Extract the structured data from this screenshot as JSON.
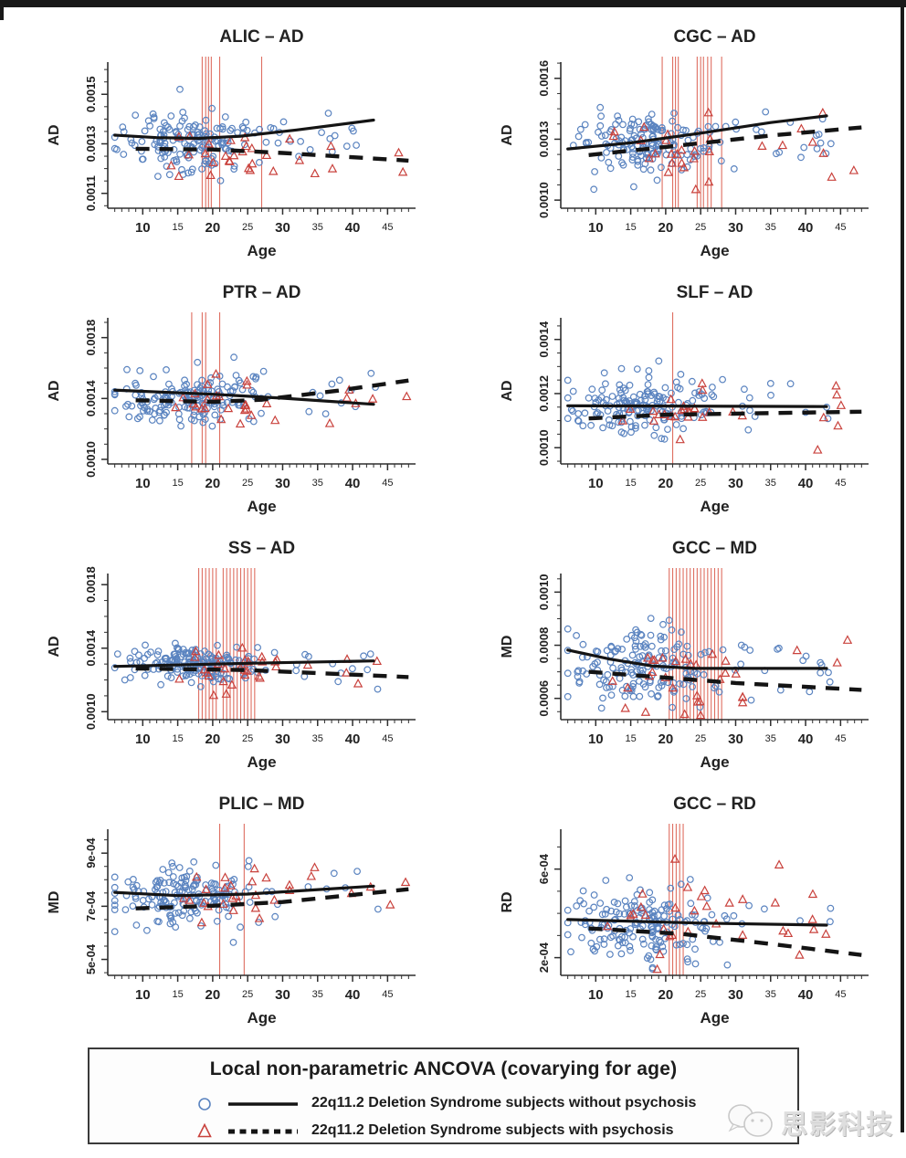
{
  "frame": {
    "top_bar_color": "#191919",
    "right_bar_color": "#191919"
  },
  "colors": {
    "blue_marker": "#5b84c0",
    "red_marker": "#c9423d",
    "red_vline": "#de6e61",
    "trend_line": "#141414",
    "axis": "#2e2e2e",
    "text": "#222222"
  },
  "legend": {
    "title": "Local non-parametric ANCOVA (covarying for age)",
    "items": [
      {
        "symbol": "circle",
        "line": "solid",
        "label": "22q11.2 Deletion Syndrome subjects without psychosis"
      },
      {
        "symbol": "triangle",
        "line": "dashed",
        "label": "22q11.2 Deletion Syndrome subjects with psychosis"
      }
    ]
  },
  "watermark": {
    "text": "思影科技"
  },
  "chart_data": {
    "type": "scatter",
    "layout": "4x2 grid of scatter plots, R base-graphics style, L-shaped axes",
    "x": {
      "label": "Age",
      "lim": [
        5,
        49
      ],
      "ticks_big": [
        10,
        20,
        30,
        40
      ],
      "ticks_small": [
        15,
        25,
        35,
        45
      ],
      "minor_from": 6,
      "minor_to": 48,
      "minor_step": 1
    },
    "series_legend": [
      {
        "name": "22q11.2 Deletion Syndrome subjects without psychosis",
        "marker": "open blue circle",
        "trend": "solid black line"
      },
      {
        "name": "22q11.2 Deletion Syndrome subjects with psychosis",
        "marker": "open red triangle",
        "trend": "dashed black line"
      }
    ],
    "sampling": {
      "blue": {
        "age_mean": 17,
        "age_sd": 4.8,
        "age_min": 6,
        "age_max": 32,
        "tail_frac": 0.08,
        "tail_min": 25,
        "tail_max": 44
      },
      "red": {
        "age_mean": 22,
        "age_sd": 4.5,
        "age_min": 9,
        "age_max": 31,
        "tail_frac": 0.2,
        "tail_min": 32,
        "tail_max": 48
      }
    },
    "panels": [
      {
        "key": "alic-ad",
        "title": "ALIC – AD",
        "ylabel": "AD",
        "xlabel": "Age",
        "ylim": [
          0.00104,
          0.00163
        ],
        "y_minor_step": 5e-05,
        "yticks": [
          {
            "v": 0.0011,
            "label": "0.0011"
          },
          {
            "v": 0.0013,
            "label": "0.0013"
          },
          {
            "v": 0.0015,
            "label": "0.0015"
          }
        ],
        "vlines": [
          18.5,
          19,
          19.4,
          19.8,
          21,
          27
        ],
        "solid": [
          [
            6,
            0.001335
          ],
          [
            12,
            0.001325
          ],
          [
            18,
            0.001322
          ],
          [
            24,
            0.001331
          ],
          [
            32,
            0.001356
          ],
          [
            43,
            0.001396
          ]
        ],
        "dashed": [
          [
            9,
            0.00128
          ],
          [
            20,
            0.001277
          ],
          [
            30,
            0.001263
          ],
          [
            48,
            0.001232
          ]
        ],
        "blue": {
          "n": 175,
          "y_center": 0.00131,
          "y_sd": 6.5e-05
        },
        "red": {
          "n": 30,
          "y_center": 0.001265,
          "y_sd": 6.2e-05
        },
        "seed": 101
      },
      {
        "key": "cgc-ad",
        "title": "CGC – AD",
        "ylabel": "AD",
        "xlabel": "Age",
        "ylim": [
          0.00096,
          0.00168
        ],
        "y_minor_step": 7.5e-05,
        "yticks": [
          {
            "v": 0.001,
            "label": "0.0010"
          },
          {
            "v": 0.0013,
            "label": "0.0013"
          },
          {
            "v": 0.0016,
            "label": "0.0016"
          }
        ],
        "vlines": [
          19.5,
          21,
          21.4,
          21.8,
          24.5,
          25,
          25.4,
          26,
          26.5,
          28
        ],
        "solid": [
          [
            6,
            0.001252
          ],
          [
            15,
            0.001282
          ],
          [
            25,
            0.00133
          ],
          [
            35,
            0.001382
          ],
          [
            43,
            0.001415
          ]
        ],
        "dashed": [
          [
            9,
            0.001222
          ],
          [
            20,
            0.001262
          ],
          [
            35,
            0.001318
          ],
          [
            48,
            0.001358
          ]
        ],
        "blue": {
          "n": 175,
          "y_center": 0.00129,
          "y_sd": 8.2e-05
        },
        "red": {
          "n": 30,
          "y_center": 0.001275,
          "y_sd": 7.5e-05
        },
        "seed": 202
      },
      {
        "key": "ptr-ad",
        "title": "PTR – AD",
        "ylabel": "AD",
        "xlabel": "Age",
        "ylim": [
          0.00097,
          0.00193
        ],
        "y_minor_step": 0.0001,
        "yticks": [
          {
            "v": 0.001,
            "label": "0.0010"
          },
          {
            "v": 0.0014,
            "label": "0.0014"
          },
          {
            "v": 0.0018,
            "label": "0.0018"
          }
        ],
        "vlines": [
          17,
          18.5,
          19,
          21
        ],
        "solid": [
          [
            6,
            0.001455
          ],
          [
            20,
            0.001428
          ],
          [
            30,
            0.001402
          ],
          [
            43,
            0.001362
          ]
        ],
        "dashed": [
          [
            9,
            0.001388
          ],
          [
            20,
            0.001378
          ],
          [
            27,
            0.001392
          ],
          [
            38,
            0.001452
          ],
          [
            48,
            0.001518
          ]
        ],
        "blue": {
          "n": 175,
          "y_center": 0.0014,
          "y_sd": 8e-05
        },
        "red": {
          "n": 30,
          "y_center": 0.00139,
          "y_sd": 8e-05
        },
        "seed": 303
      },
      {
        "key": "slf-ad",
        "title": "SLF – AD",
        "ylabel": "AD",
        "xlabel": "Age",
        "ylim": [
          0.00094,
          0.00148
        ],
        "y_minor_step": 5e-05,
        "yticks": [
          {
            "v": 0.001,
            "label": "0.0010"
          },
          {
            "v": 0.0012,
            "label": "0.0012"
          },
          {
            "v": 0.0014,
            "label": "0.0014"
          }
        ],
        "vlines": [
          21
        ],
        "solid": [
          [
            6,
            0.001155
          ],
          [
            43,
            0.001152
          ]
        ],
        "dashed": [
          [
            9,
            0.001108
          ],
          [
            20,
            0.001122
          ],
          [
            48,
            0.001133
          ]
        ],
        "blue": {
          "n": 175,
          "y_center": 0.001152,
          "y_sd": 5.5e-05
        },
        "red": {
          "n": 30,
          "y_center": 0.00114,
          "y_sd": 5e-05
        },
        "seed": 404
      },
      {
        "key": "ss-ad",
        "title": "SS – AD",
        "ylabel": "AD",
        "xlabel": "Age",
        "ylim": [
          0.00095,
          0.00187
        ],
        "y_minor_step": 0.0001,
        "yticks": [
          {
            "v": 0.001,
            "label": "0.0010"
          },
          {
            "v": 0.0014,
            "label": "0.0014"
          },
          {
            "v": 0.0018,
            "label": "0.0018"
          }
        ],
        "vlines": [
          18,
          18.5,
          19,
          19.5,
          20,
          20.5,
          21.5,
          22,
          22.5,
          23,
          23.5,
          24,
          24.5,
          25,
          25.5,
          26
        ],
        "solid": [
          [
            6,
            0.001285
          ],
          [
            25,
            0.001305
          ],
          [
            43,
            0.00132
          ]
        ],
        "dashed": [
          [
            9,
            0.001272
          ],
          [
            25,
            0.001262
          ],
          [
            48,
            0.001218
          ]
        ],
        "blue": {
          "n": 180,
          "y_center": 0.001298,
          "y_sd": 5.8e-05
        },
        "red": {
          "n": 32,
          "y_center": 0.00128,
          "y_sd": 6e-05
        },
        "seed": 505
      },
      {
        "key": "gcc-md",
        "title": "GCC – MD",
        "ylabel": "MD",
        "xlabel": "Age",
        "ylim": [
          0.00052,
          0.00107
        ],
        "y_minor_step": 5e-05,
        "yticks": [
          {
            "v": 0.0006,
            "label": "0.0006"
          },
          {
            "v": 0.0008,
            "label": "0.0008"
          },
          {
            "v": 0.001,
            "label": "0.0010"
          }
        ],
        "vlines": [
          20.5,
          21,
          21.5,
          22,
          22.5,
          23,
          23.5,
          24,
          24.5,
          25,
          25.5,
          26,
          26.5,
          27,
          27.5,
          28
        ],
        "solid": [
          [
            6,
            0.000782
          ],
          [
            12,
            0.000748
          ],
          [
            18,
            0.000722
          ],
          [
            24,
            0.000713
          ],
          [
            43,
            0.000713
          ]
        ],
        "dashed": [
          [
            9,
            0.0007
          ],
          [
            20,
            0.000678
          ],
          [
            30,
            0.000658
          ],
          [
            48,
            0.000632
          ]
        ],
        "blue": {
          "n": 180,
          "y_center": 0.000722,
          "y_sd": 7.2e-05
        },
        "red": {
          "n": 32,
          "y_center": 0.00069,
          "y_sd": 7.8e-05
        },
        "seed": 606
      },
      {
        "key": "plic-md",
        "title": "PLIC – MD",
        "ylabel": "MD",
        "xlabel": "Age",
        "ylim": [
          0.00044,
          0.00099
        ],
        "y_minor_step": 5e-05,
        "yticks": [
          {
            "v": 0.0005,
            "label": "5e-04"
          },
          {
            "v": 0.0007,
            "label": "7e-04"
          },
          {
            "v": 0.0009,
            "label": "9e-04"
          }
        ],
        "vlines": [
          21,
          24.5
        ],
        "solid": [
          [
            6,
            0.000752
          ],
          [
            15,
            0.00074
          ],
          [
            25,
            0.000746
          ],
          [
            43,
            0.000776
          ]
        ],
        "dashed": [
          [
            9,
            0.000692
          ],
          [
            20,
            0.000702
          ],
          [
            30,
            0.000716
          ],
          [
            48,
            0.000764
          ]
        ],
        "blue": {
          "n": 175,
          "y_center": 0.00074,
          "y_sd": 5.5e-05
        },
        "red": {
          "n": 30,
          "y_center": 0.00073,
          "y_sd": 5.5e-05
        },
        "seed": 707
      },
      {
        "key": "gcc-rd",
        "title": "GCC – RD",
        "ylabel": "RD",
        "xlabel": "Age",
        "ylim": [
          0.00012,
          0.00078
        ],
        "y_minor_step": 0.0001,
        "yticks": [
          {
            "v": 0.0002,
            "label": "2e-04"
          },
          {
            "v": 0.0006,
            "label": "6e-04"
          }
        ],
        "vlines": [
          20.5,
          21,
          21.5,
          22,
          22.5
        ],
        "solid": [
          [
            6,
            0.000372
          ],
          [
            25,
            0.000356
          ],
          [
            43,
            0.000347
          ]
        ],
        "dashed": [
          [
            9,
            0.000332
          ],
          [
            22,
            0.000308
          ],
          [
            35,
            0.000262
          ],
          [
            48,
            0.000212
          ]
        ],
        "blue": {
          "n": 180,
          "y_center": 0.000355,
          "y_sd": 8e-05
        },
        "red": {
          "n": 32,
          "y_center": 0.00036,
          "y_sd": 9.5e-05
        },
        "seed": 808
      }
    ]
  }
}
